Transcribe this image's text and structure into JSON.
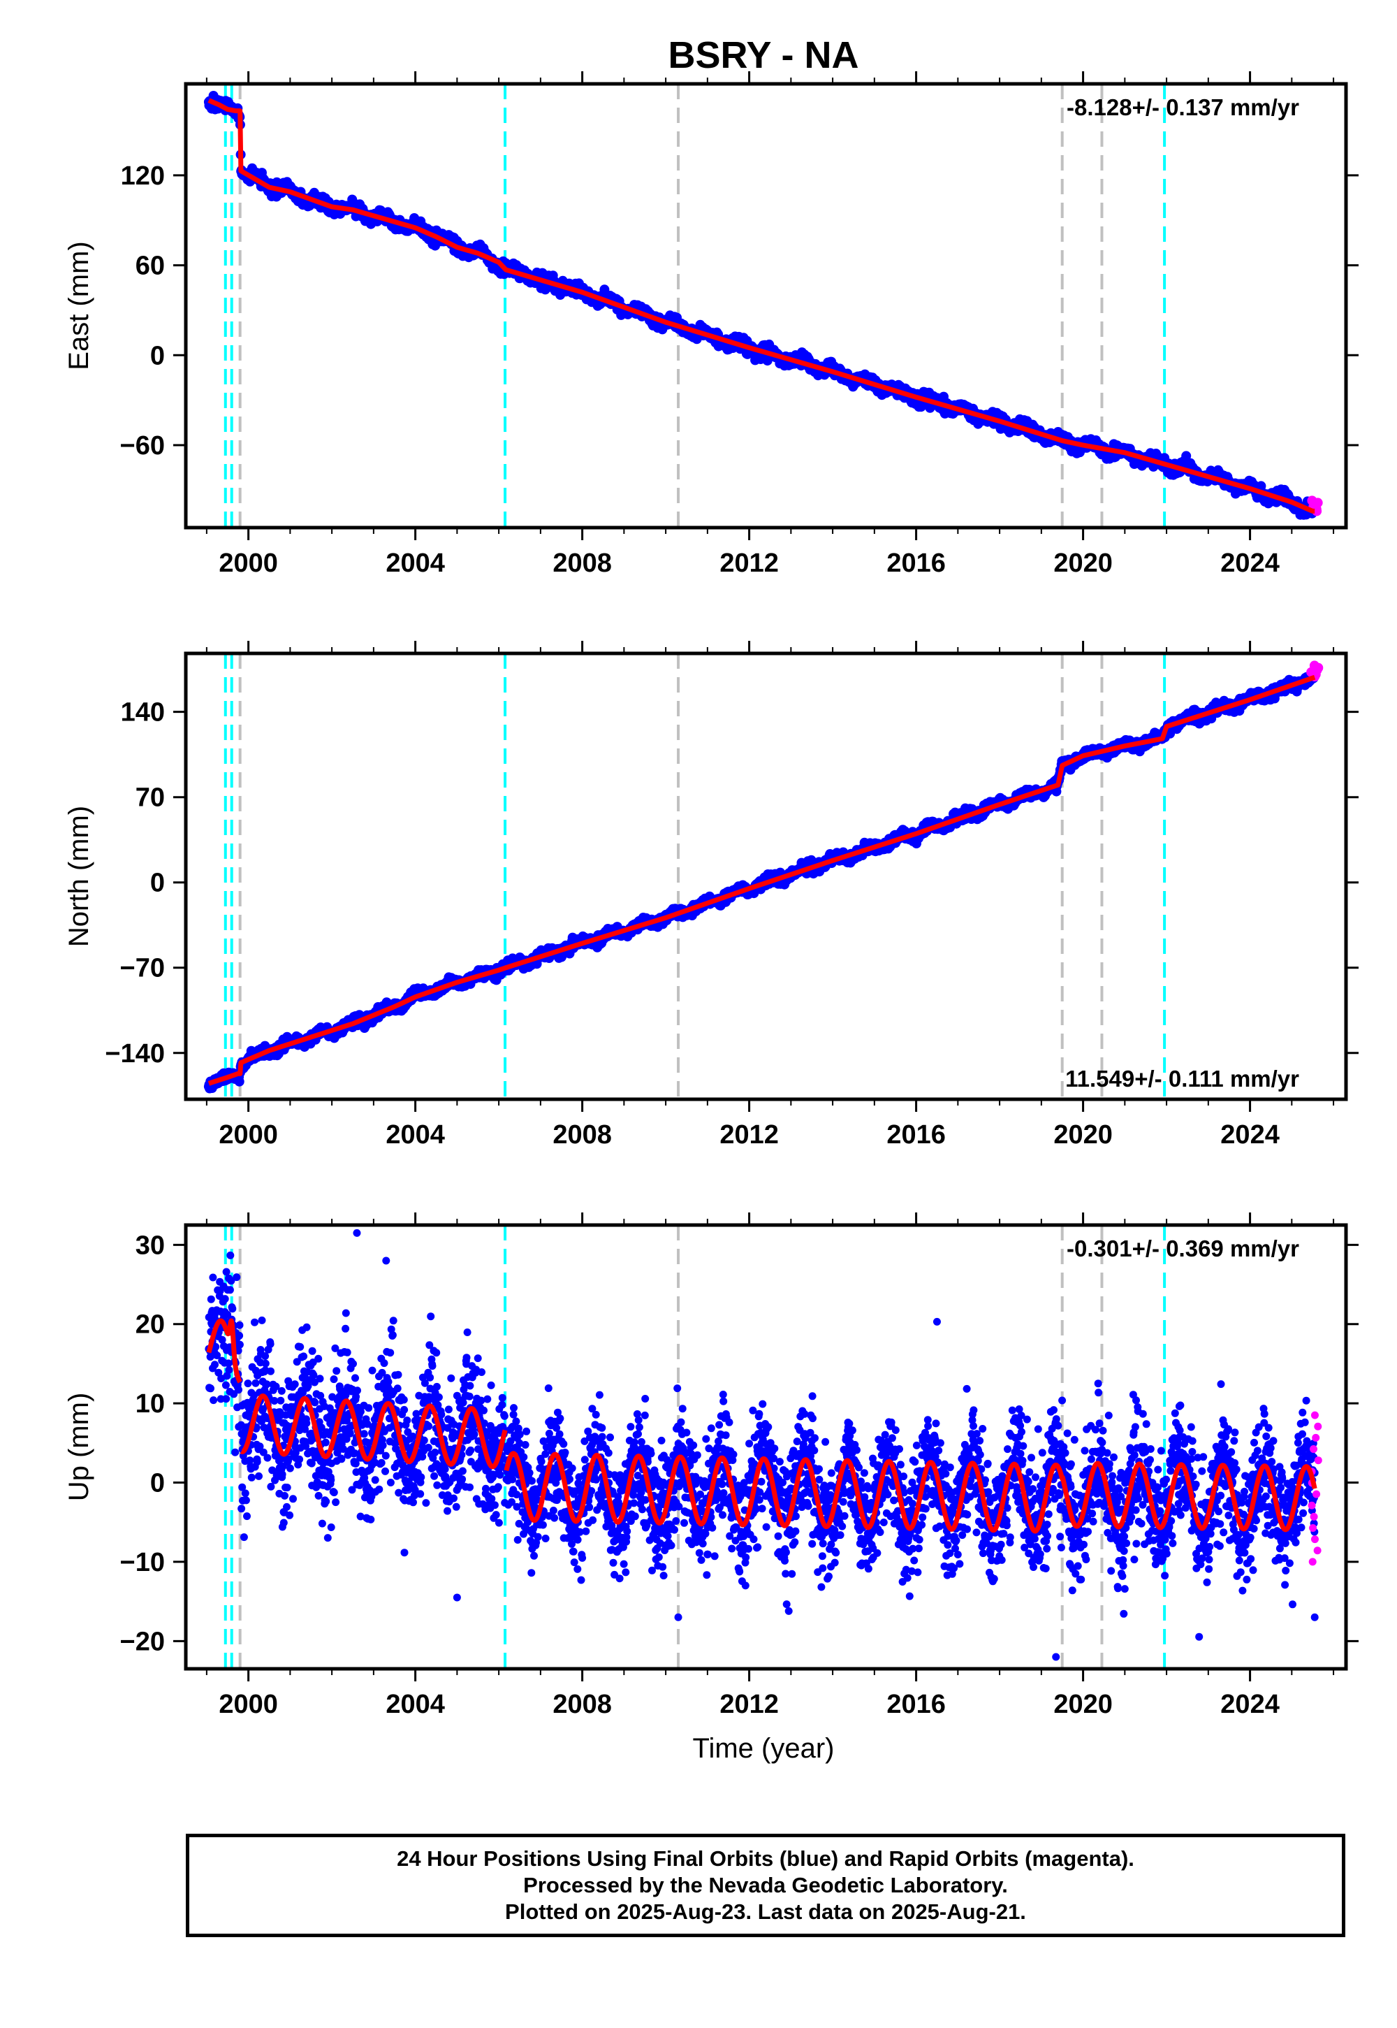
{
  "colors": {
    "final_orbits": "#0000ff",
    "rapid_orbits": "#ff00ff",
    "model_fit": "#ff0000",
    "equipment_change_line": "#00ffff",
    "earthquake_line": "#c0c0c0"
  },
  "title": "BSRY - NA",
  "xlabel": "Time (year)",
  "chart_data": [
    {
      "type": "scatter",
      "component": "east",
      "ylabel": "East (mm)",
      "rate_label": "-8.128+/- 0.137 mm/yr",
      "xlim": [
        1998.5,
        2026.3
      ],
      "ylim": [
        -115,
        181
      ],
      "x_ticks": [
        "2000",
        "2004",
        "2008",
        "2012",
        "2016",
        "2020",
        "2024"
      ],
      "y_ticks": [
        "120",
        "60",
        "0",
        "−60"
      ],
      "model_fit": {
        "x": [
          1999.05,
          1999.3,
          1999.5,
          1999.7,
          1999.8,
          1999.82,
          2000.5,
          2001.0,
          2001.5,
          2002.0,
          2002.5,
          2003.0,
          2003.5,
          2004.0,
          2004.5,
          2005.0,
          2005.5,
          2006.0,
          2006.17,
          2008.0,
          2010.0,
          2012.0,
          2014.0,
          2016.0,
          2018.0,
          2019.5,
          2020.0,
          2021.0,
          2022.0,
          2024.0,
          2025.0,
          2025.5
        ],
        "y": [
          170,
          167,
          164,
          163,
          163,
          123,
          112,
          109,
          104,
          99,
          97,
          93,
          89,
          85,
          79,
          72,
          68,
          62,
          57,
          42,
          22,
          5,
          -11,
          -28,
          -44,
          -57,
          -60,
          -65,
          -73,
          -89,
          -98,
          -104
        ]
      },
      "final_orbits_x_range": [
        1999.05,
        2025.55
      ],
      "rapid_orbits": {
        "x_range": [
          2025.45,
          2025.65
        ],
        "y_range": [
          -104,
          -97
        ]
      },
      "equipment_changes": [
        1999.45,
        1999.6,
        2006.15,
        2021.95
      ],
      "earthquakes": [
        1999.8,
        2010.3,
        2019.5,
        2020.45
      ]
    },
    {
      "type": "scatter",
      "component": "north",
      "ylabel": "North (mm)",
      "rate_label": "11.549+/- 0.111 mm/yr",
      "xlim": [
        1998.5,
        2026.3
      ],
      "ylim": [
        -178,
        188
      ],
      "x_ticks": [
        "2000",
        "2004",
        "2008",
        "2012",
        "2016",
        "2020",
        "2024"
      ],
      "y_ticks": [
        "140",
        "70",
        "0",
        "−70",
        "−140"
      ],
      "model_fit": {
        "x": [
          1999.05,
          1999.5,
          1999.75,
          1999.8,
          1999.82,
          2000.5,
          2001.5,
          2002.5,
          2003.5,
          2004.0,
          2005.0,
          2006.0,
          2006.17,
          2008.0,
          2010.0,
          2012.0,
          2014.0,
          2016.0,
          2018.0,
          2019.4,
          2019.5,
          2020.0,
          2021.0,
          2021.9,
          2022.0,
          2024.0,
          2025.6
        ],
        "y": [
          -165,
          -160,
          -157,
          -157,
          -148,
          -138,
          -127,
          -116,
          -102,
          -94,
          -82,
          -72,
          -70,
          -50,
          -29,
          -5,
          18,
          40,
          64,
          80,
          96,
          104,
          112,
          118,
          128,
          150,
          169
        ]
      },
      "final_orbits_x_range": [
        1999.05,
        2025.55
      ],
      "rapid_orbits": {
        "x_range": [
          2025.45,
          2025.65
        ],
        "y_range": [
          169,
          178
        ]
      },
      "equipment_changes": [
        1999.45,
        1999.6,
        2006.15,
        2021.95
      ],
      "earthquakes": [
        1999.8,
        2010.3,
        2019.5,
        2020.45
      ]
    },
    {
      "type": "scatter",
      "component": "up",
      "ylabel": "Up (mm)",
      "rate_label": "-0.301+/- 0.369 mm/yr",
      "xlim": [
        1998.5,
        2026.3
      ],
      "ylim": [
        -23.5,
        32.5
      ],
      "x_ticks": [
        "2000",
        "2004",
        "2008",
        "2012",
        "2016",
        "2020",
        "2024"
      ],
      "y_ticks": [
        "30",
        "20",
        "10",
        "0",
        "−10",
        "−20"
      ],
      "model_fit": {
        "segments": [
          {
            "x_range": [
              1999.05,
              1999.8
            ],
            "y_start": 17.5,
            "y_end": 16,
            "amplitude": 3.5,
            "spike_year": 1999.6,
            "spike_mm": 24
          },
          {
            "x_range": [
              1999.82,
              2006.15
            ],
            "y_start": 7.5,
            "y_end": 5.5,
            "amplitude": 3.6
          },
          {
            "x_range": [
              2006.17,
              2019.5
            ],
            "y_start": -0.5,
            "y_end": -2,
            "amplitude": 4.2
          },
          {
            "x_range": [
              2019.5,
              2025.6
            ],
            "y_start": -1.5,
            "y_end": -2,
            "amplitude": 4.0
          }
        ]
      },
      "final_orbits": {
        "x_range": [
          1999.05,
          2025.55
        ],
        "scatter_sd_mm": 3.6,
        "outliers": [
          {
            "x": 2002.6,
            "y": 31.5
          },
          {
            "x": 2003.3,
            "y": 28
          },
          {
            "x": 2016.5,
            "y": 20.3
          },
          {
            "x": 2019.35,
            "y": -22
          },
          {
            "x": 2005.0,
            "y": -14.5
          },
          {
            "x": 2010.3,
            "y": -17
          },
          {
            "x": 2025.55,
            "y": -17
          }
        ]
      },
      "rapid_orbits": {
        "x_range": [
          2025.45,
          2025.65
        ],
        "y_range": [
          -10,
          8.5
        ]
      },
      "equipment_changes": [
        1999.45,
        1999.6,
        2006.15,
        2021.95
      ],
      "earthquakes": [
        1999.8,
        2010.3,
        2019.5,
        2020.45
      ]
    }
  ],
  "footer": {
    "line1": "24 Hour Positions Using Final Orbits (blue) and Rapid Orbits (magenta).",
    "line2": "Processed by the Nevada Geodetic Laboratory.",
    "line3": "Plotted on 2025-Aug-23. Last data on 2025-Aug-21."
  }
}
